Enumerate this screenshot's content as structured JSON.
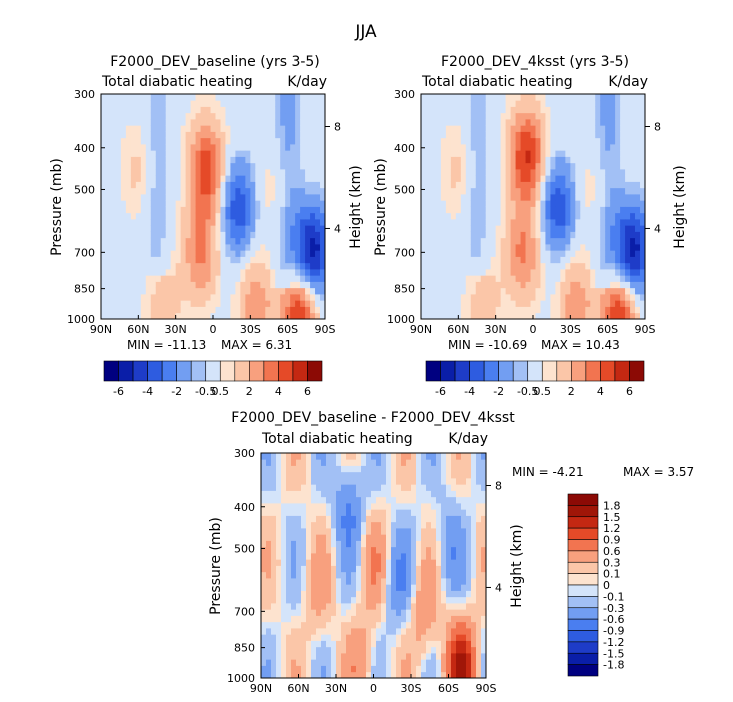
{
  "figure": {
    "title": "JJA"
  },
  "chart_data": [
    {
      "type": "heatmap",
      "title": "F2000_DEV_baseline (yrs 3-5)",
      "subtitle_left": "Total diabatic heating",
      "subtitle_right": "K/day",
      "xlabel": "",
      "ylabel": "Pressure (mb)",
      "y2label": "Height (km)",
      "x_ticks": [
        "90N",
        "60N",
        "30N",
        "0",
        "30S",
        "60S",
        "90S"
      ],
      "x_range": [
        90,
        -90
      ],
      "y_ticks": [
        "300",
        "400",
        "500",
        "700",
        "850",
        "1000"
      ],
      "y_range_mb": [
        1000,
        300
      ],
      "y2_ticks": [
        "8",
        "4"
      ],
      "min_text": "MIN = -11.13",
      "max_text": "MAX =   6.31",
      "min": -11.13,
      "max": 6.31,
      "colorbar_labels": [
        "-6",
        "-4",
        "-2",
        "-0.5",
        "0.5",
        "2",
        "4",
        "6"
      ],
      "colorbar_levels": [
        -6,
        -5,
        -4,
        -3,
        -2,
        -1,
        -0.5,
        0.5,
        1,
        2,
        3,
        4,
        5,
        6
      ],
      "features": [
        {
          "lat": 5,
          "p": 450,
          "value": 4.5
        },
        {
          "lat": 10,
          "p": 700,
          "value": 3
        },
        {
          "lat": -70,
          "p": 960,
          "value": 5
        },
        {
          "lat": -35,
          "p": 920,
          "value": 2.5
        },
        {
          "lat": 40,
          "p": 930,
          "value": 1.5
        },
        {
          "lat": -20,
          "p": 550,
          "value": -4
        },
        {
          "lat": -80,
          "p": 700,
          "value": -6
        },
        {
          "lat": 60,
          "p": 450,
          "value": 1
        },
        {
          "lat": -50,
          "p": 500,
          "value": 1
        }
      ]
    },
    {
      "type": "heatmap",
      "title": "F2000_DEV_4ksst (yrs 3-5)",
      "subtitle_left": "Total diabatic heating",
      "subtitle_right": "K/day",
      "xlabel": "",
      "ylabel": "Pressure (mb)",
      "y2label": "Height (km)",
      "x_ticks": [
        "90N",
        "60N",
        "30N",
        "0",
        "30S",
        "60S",
        "90S"
      ],
      "x_range": [
        90,
        -90
      ],
      "y_ticks": [
        "300",
        "400",
        "500",
        "700",
        "850",
        "1000"
      ],
      "y_range_mb": [
        1000,
        300
      ],
      "y2_ticks": [
        "8",
        "4"
      ],
      "min_text": "MIN = -10.69",
      "max_text": "MAX =  10.43",
      "min": -10.69,
      "max": 10.43,
      "colorbar_labels": [
        "-6",
        "-4",
        "-2",
        "-0.5",
        "0.5",
        "2",
        "4",
        "6"
      ],
      "colorbar_levels": [
        -6,
        -5,
        -4,
        -3,
        -2,
        -1,
        -0.5,
        0.5,
        1,
        2,
        3,
        4,
        5,
        6
      ],
      "features": [
        {
          "lat": 5,
          "p": 420,
          "value": 5
        },
        {
          "lat": 8,
          "p": 700,
          "value": 3
        },
        {
          "lat": -70,
          "p": 960,
          "value": 5
        },
        {
          "lat": -35,
          "p": 920,
          "value": 2.5
        },
        {
          "lat": 40,
          "p": 930,
          "value": 1.5
        },
        {
          "lat": -20,
          "p": 550,
          "value": -4
        },
        {
          "lat": -80,
          "p": 700,
          "value": -6
        },
        {
          "lat": 60,
          "p": 450,
          "value": 1
        },
        {
          "lat": -50,
          "p": 500,
          "value": 1
        }
      ]
    },
    {
      "type": "heatmap",
      "title": "F2000_DEV_baseline - F2000_DEV_4ksst",
      "subtitle_left": "Total diabatic heating",
      "subtitle_right": "K/day",
      "xlabel": "",
      "ylabel": "Pressure (mb)",
      "y2label": "Height (km)",
      "x_ticks": [
        "90N",
        "60N",
        "30N",
        "0",
        "30S",
        "60S",
        "90S"
      ],
      "x_range": [
        90,
        -90
      ],
      "y_ticks": [
        "300",
        "400",
        "500",
        "700",
        "850",
        "1000"
      ],
      "y_range_mb": [
        1000,
        300
      ],
      "y2_ticks": [
        "8",
        "4"
      ],
      "min_text": "MIN =   -4.21",
      "max_text": "MAX =    3.57",
      "min": -4.21,
      "max": 3.57,
      "colorbar_labels": [
        "1.8",
        "1.5",
        "1.2",
        "0.9",
        "0.6",
        "0.3",
        "0.1",
        "0",
        "-0.1",
        "-0.3",
        "-0.6",
        "-0.9",
        "-1.2",
        "-1.5",
        "-1.8"
      ],
      "colorbar_levels": [
        -1.8,
        -1.5,
        -1.2,
        -0.9,
        -0.6,
        -0.3,
        -0.1,
        0,
        0.1,
        0.3,
        0.6,
        0.9,
        1.2,
        1.5,
        1.8
      ],
      "features": [
        {
          "lat": 20,
          "p": 400,
          "value": -0.6
        },
        {
          "lat": 0,
          "p": 550,
          "value": 0.4
        },
        {
          "lat": -20,
          "p": 600,
          "value": -0.5
        },
        {
          "lat": 45,
          "p": 650,
          "value": 0.3
        },
        {
          "lat": -40,
          "p": 700,
          "value": 0.5
        },
        {
          "lat": -70,
          "p": 950,
          "value": 1.5
        },
        {
          "lat": 10,
          "p": 900,
          "value": 0.4
        },
        {
          "lat": -60,
          "p": 500,
          "value": -0.4
        }
      ]
    }
  ],
  "palette": {
    "levels14": [
      "#000080",
      "#0a1ea8",
      "#1e3cc8",
      "#2e5ce0",
      "#4a7ef0",
      "#729ef2",
      "#a2c0f5",
      "#d4e4fa",
      "#fde3cf",
      "#fbc6a8",
      "#f8a07e",
      "#f27450",
      "#e54a28",
      "#c42812",
      "#8c0a05"
    ],
    "diff16": [
      "#000080",
      "#0a1ea8",
      "#1e3cc8",
      "#2e5ce0",
      "#4a7ef0",
      "#729ef2",
      "#a2c0f5",
      "#d4e4fa",
      "#fde3cf",
      "#fbc6a8",
      "#f8a07e",
      "#f27450",
      "#e54a28",
      "#c42812",
      "#a01608",
      "#8c0a05"
    ]
  }
}
